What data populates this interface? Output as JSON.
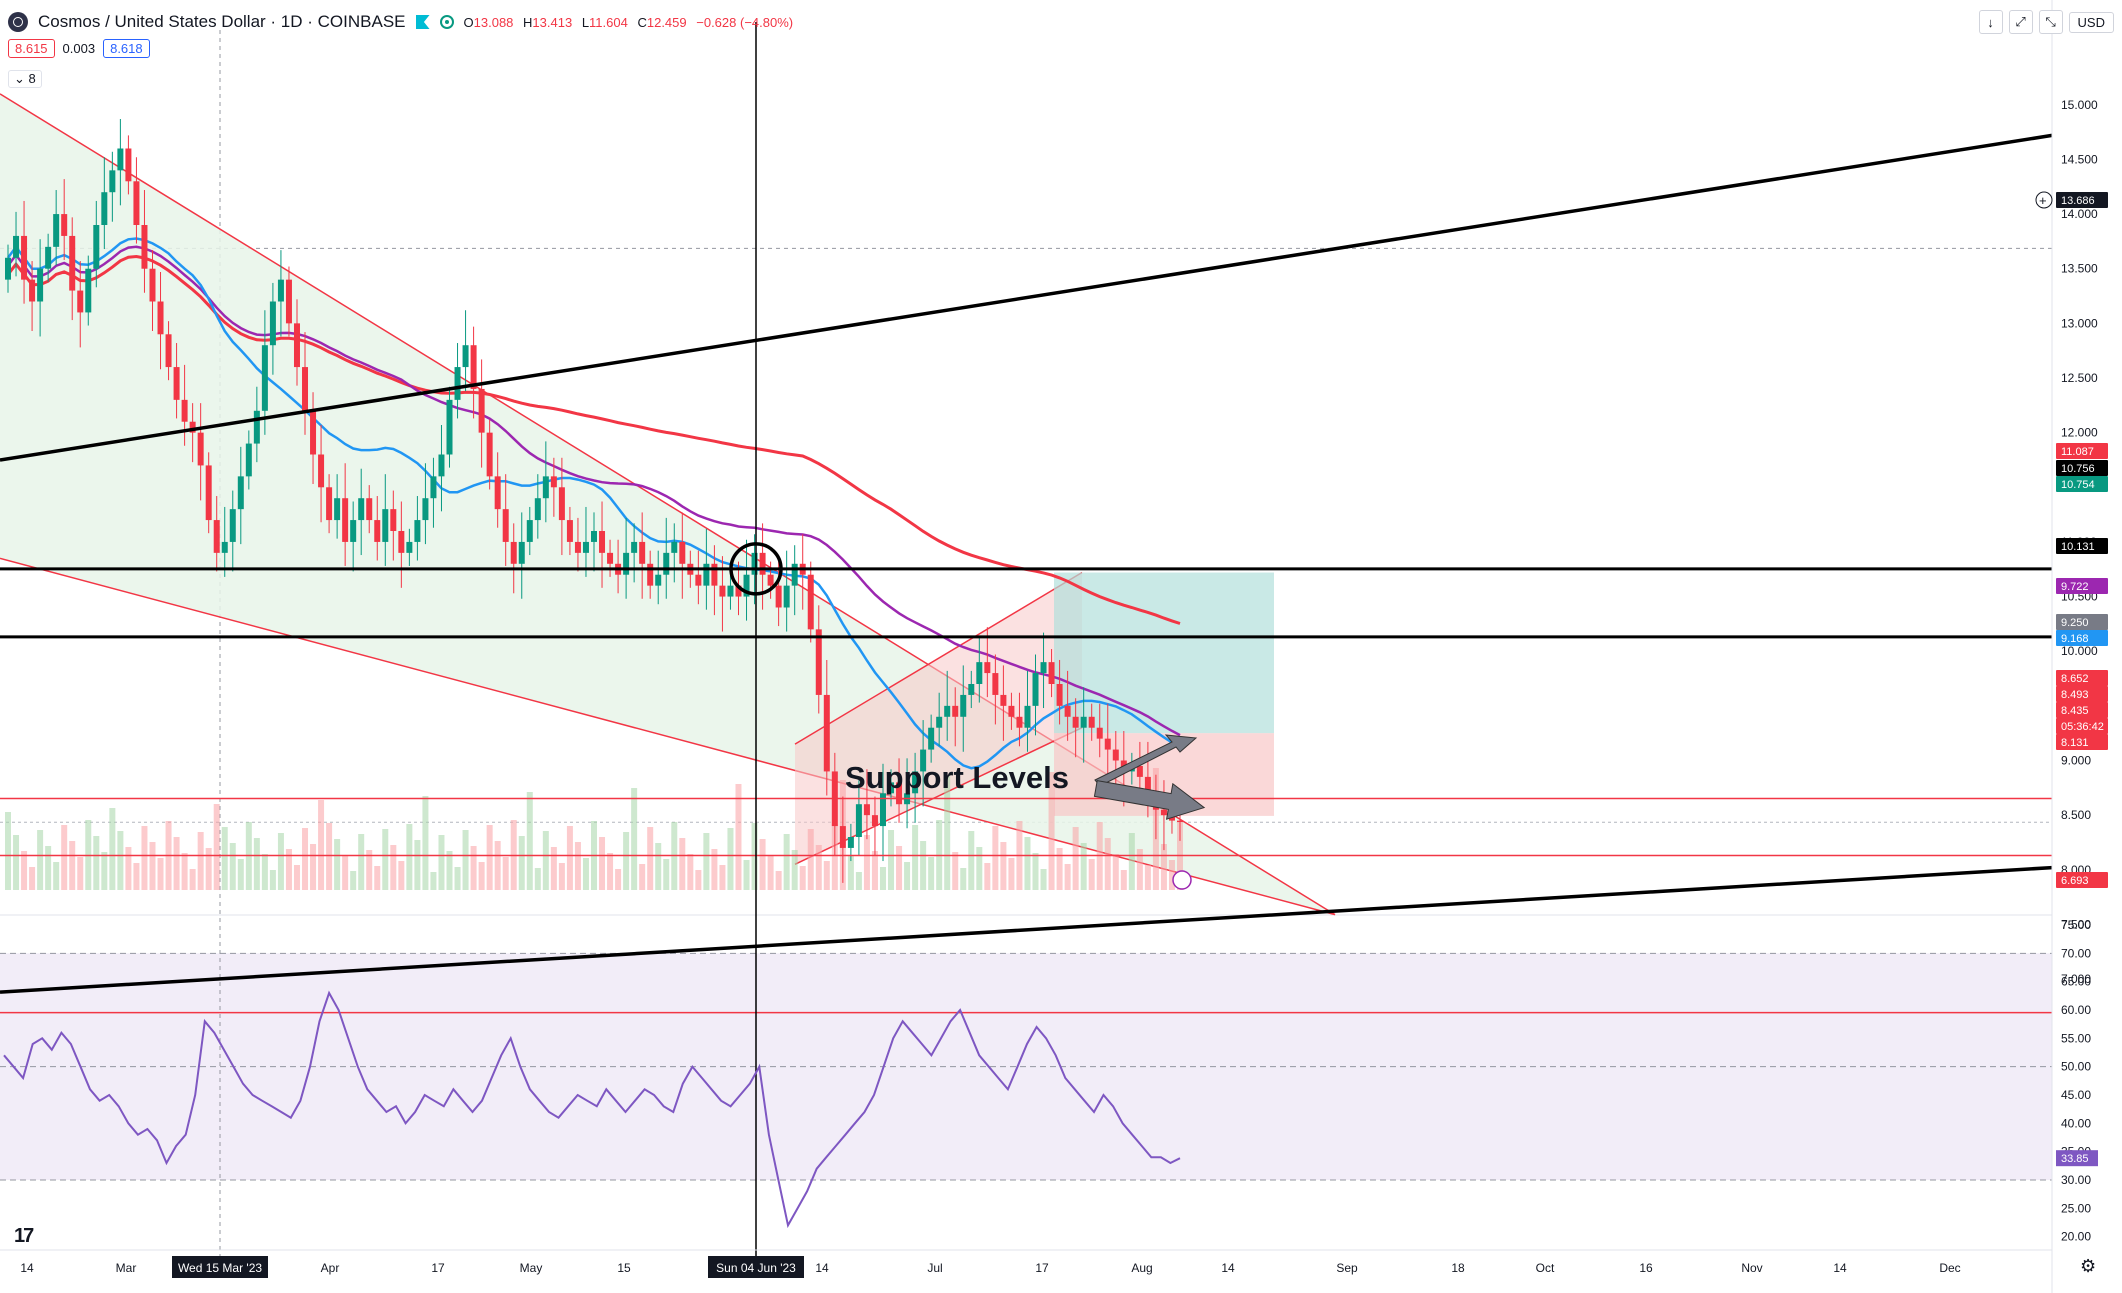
{
  "header": {
    "title": "Cosmos / United States Dollar · 1D · COINBASE",
    "ohlc": {
      "o_key": "O",
      "o": "13.088",
      "h_key": "H",
      "h": "13.413",
      "l_key": "L",
      "l": "11.604",
      "c_key": "C",
      "c": "12.459"
    },
    "change": "−0.628 (−4.80%)",
    "sell": "8.615",
    "spread": "0.003",
    "buy": "8.618",
    "indicators_count": "8",
    "currency": "USD",
    "toolbar": [
      "↓",
      "⤢",
      "⤡"
    ]
  },
  "annotation": {
    "support_label": "Support Levels"
  },
  "colors": {
    "up": "#089981",
    "down": "#f23645",
    "ema_blue": "#2196f3",
    "ma_purple": "#9c27b0",
    "ma_red": "#f23645",
    "rsi": "#7e57c2",
    "trend_black": "#000000",
    "wedge_fill": "#e8f5e9"
  },
  "price_axis": {
    "ticks": [
      "15.000",
      "14.500",
      "14.000",
      "13.500",
      "13.000",
      "12.500",
      "12.000",
      "11.500",
      "11.000",
      "10.500",
      "10.000",
      "9.500",
      "9.000",
      "8.500",
      "8.000",
      "7.500",
      "7.000"
    ],
    "labels": [
      {
        "text": "13.686",
        "bg": "#131722"
      },
      {
        "text": "11.087",
        "bg": "#f23645"
      },
      {
        "text": "10.756",
        "bg": "#000000"
      },
      {
        "text": "10.754",
        "bg": "#089981"
      },
      {
        "text": "10.131",
        "bg": "#000000"
      },
      {
        "text": "9.722",
        "bg": "#9c27b0"
      },
      {
        "text": "9.250",
        "bg": "#787b86"
      },
      {
        "text": "9.168",
        "bg": "#2196f3"
      },
      {
        "text": "8.652",
        "bg": "#f23645"
      },
      {
        "text": "8.493",
        "bg": "#f23645"
      },
      {
        "text": "8.435",
        "bg": "#f23645"
      },
      {
        "text": "05:36:42",
        "bg": "#f23645"
      },
      {
        "text": "8.131",
        "bg": "#f23645"
      },
      {
        "text": "6.693",
        "bg": "#f23645"
      }
    ]
  },
  "rsi_axis": {
    "ticks": [
      "75.00",
      "70.00",
      "65.00",
      "60.00",
      "55.00",
      "50.00",
      "45.00",
      "40.00",
      "35.00",
      "30.00",
      "25.00",
      "20.00"
    ],
    "current": "33.85"
  },
  "time_axis": {
    "ticks": [
      "14",
      "Mar",
      "Apr",
      "17",
      "May",
      "15",
      "14",
      "Jul",
      "17",
      "Aug",
      "14",
      "Sep",
      "18",
      "Oct",
      "16",
      "Nov",
      "14",
      "Dec"
    ],
    "crosshair_labels": [
      "Wed 15 Mar '23",
      "Sun 04 Jun '23"
    ]
  },
  "chart_data": {
    "type": "candlestick",
    "symbol": "Cosmos / United States Dollar",
    "interval": "1D",
    "exchange": "COINBASE",
    "y_range": [
      6.9,
      15.3
    ],
    "rsi_range": [
      18,
      75
    ],
    "current_price": 8.435,
    "horizontal_levels": [
      10.754,
      10.131,
      8.652,
      8.131,
      6.693
    ],
    "candles_approx_close": [
      13.6,
      13.8,
      13.4,
      13.2,
      13.5,
      13.7,
      14.0,
      13.8,
      13.3,
      13.1,
      13.5,
      13.9,
      14.2,
      14.4,
      14.6,
      14.3,
      13.9,
      13.5,
      13.2,
      12.9,
      12.6,
      12.3,
      12.1,
      12.0,
      11.7,
      11.2,
      10.9,
      11.0,
      11.3,
      11.6,
      11.9,
      12.2,
      12.8,
      13.2,
      13.4,
      13.0,
      12.6,
      12.2,
      11.8,
      11.5,
      11.2,
      11.4,
      11.0,
      11.2,
      11.4,
      11.2,
      11.0,
      11.3,
      11.1,
      10.9,
      11.0,
      11.2,
      11.4,
      11.6,
      11.8,
      12.3,
      12.6,
      12.8,
      12.4,
      12.0,
      11.6,
      11.3,
      11.0,
      10.8,
      11.0,
      11.2,
      11.4,
      11.6,
      11.5,
      11.2,
      11.0,
      10.9,
      11.0,
      11.1,
      10.9,
      10.8,
      10.7,
      10.9,
      11.0,
      10.8,
      10.6,
      10.7,
      10.9,
      11.0,
      10.8,
      10.7,
      10.6,
      10.8,
      10.6,
      10.5,
      10.6,
      10.5,
      10.7,
      10.9,
      10.7,
      10.6,
      10.4,
      10.6,
      10.8,
      10.7,
      10.2,
      9.6,
      8.9,
      8.4,
      8.2,
      8.3,
      8.6,
      8.5,
      8.4,
      8.7,
      8.8,
      8.6,
      8.7,
      8.9,
      9.1,
      9.3,
      9.4,
      9.5,
      9.4,
      9.6,
      9.7,
      9.9,
      9.8,
      9.6,
      9.5,
      9.4,
      9.3,
      9.5,
      9.8,
      9.9,
      9.7,
      9.5,
      9.4,
      9.3,
      9.4,
      9.3,
      9.2,
      9.1,
      9.0,
      8.9,
      8.95,
      8.85,
      8.7,
      8.55,
      8.5,
      8.45,
      8.435
    ],
    "rsi_approx": [
      52,
      50,
      48,
      54,
      55,
      53,
      56,
      54,
      50,
      46,
      44,
      45,
      43,
      40,
      38,
      39,
      37,
      33,
      36,
      38,
      45,
      58,
      56,
      53,
      50,
      47,
      45,
      44,
      43,
      42,
      41,
      44,
      50,
      58,
      63,
      60,
      55,
      50,
      46,
      44,
      42,
      43,
      40,
      42,
      45,
      44,
      43,
      46,
      44,
      42,
      44,
      48,
      52,
      55,
      50,
      46,
      44,
      42,
      41,
      43,
      45,
      44,
      43,
      46,
      44,
      42,
      44,
      46,
      45,
      43,
      42,
      47,
      50,
      48,
      46,
      44,
      43,
      45,
      47,
      50,
      38,
      30,
      22,
      25,
      28,
      32,
      34,
      36,
      38,
      40,
      42,
      45,
      50,
      55,
      58,
      56,
      54,
      52,
      55,
      58,
      60,
      56,
      52,
      50,
      48,
      46,
      50,
      54,
      57,
      55,
      52,
      48,
      46,
      44,
      42,
      45,
      43,
      40,
      38,
      36,
      34,
      34,
      33,
      33.85
    ],
    "moving_averages": [
      {
        "color": "#2196f3",
        "last": 9.168
      },
      {
        "color": "#9c27b0",
        "last": 9.722
      },
      {
        "color": "#f23645",
        "last": 11.087
      }
    ]
  }
}
